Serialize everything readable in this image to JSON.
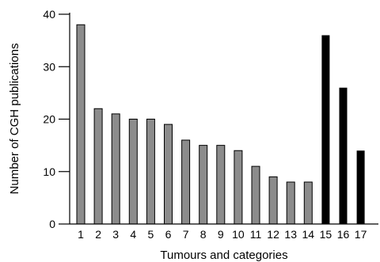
{
  "chart_data": {
    "type": "bar",
    "xlabel": "Tumours and categories",
    "ylabel": "Number of CGH publications",
    "ylim": [
      0,
      40
    ],
    "yticks": [
      0,
      10,
      20,
      30,
      40
    ],
    "grid": false,
    "categories": [
      "1",
      "2",
      "3",
      "4",
      "5",
      "6",
      "7",
      "8",
      "9",
      "10",
      "11",
      "12",
      "13",
      "14",
      "15",
      "16",
      "17"
    ],
    "values": [
      38,
      22,
      21,
      20,
      20,
      19,
      16,
      15,
      15,
      14,
      11,
      9,
      8,
      8,
      36,
      26,
      14
    ],
    "colors": {
      "group_a": "#8c8c8c",
      "group_b": "#000000",
      "group_b_from_index": 14
    }
  }
}
